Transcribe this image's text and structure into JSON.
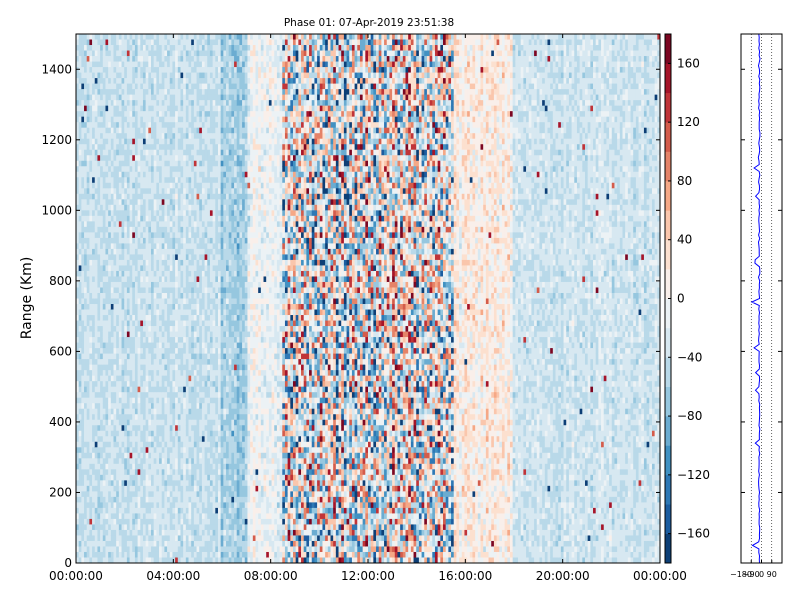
{
  "chart_data": [
    {
      "type": "heatmap",
      "title": "Phase 01: 07-Apr-2019 23:51:38",
      "xlabel": "",
      "ylabel": "Range (Km)",
      "x_ticks": [
        "00:00:00",
        "04:00:00",
        "08:00:00",
        "12:00:00",
        "16:00:00",
        "20:00:00",
        "00:00:00"
      ],
      "x_tick_hours": [
        0,
        4,
        8,
        12,
        16,
        20,
        24
      ],
      "xlim_hours": [
        0,
        24
      ],
      "y_ticks": [
        0,
        200,
        400,
        600,
        800,
        1000,
        1200,
        1400
      ],
      "ylim": [
        0,
        1500
      ],
      "colormap": "RdBu_r",
      "value_range": [
        -180,
        180
      ],
      "colorbar_ticks": [
        160,
        120,
        80,
        40,
        0,
        -40,
        -80,
        -120,
        -160
      ],
      "colorbar_levels": [
        -180,
        -160,
        -140,
        -120,
        -100,
        -80,
        -60,
        -40,
        -20,
        0,
        20,
        40,
        60,
        80,
        100,
        120,
        140,
        160,
        180
      ],
      "grid": false,
      "column_profile": [
        {
          "hour_start": 0,
          "hour_end": 6,
          "mean": -40,
          "spread": 20
        },
        {
          "hour_start": 6,
          "hour_end": 7,
          "mean": -60,
          "spread": 25
        },
        {
          "hour_start": 7,
          "hour_end": 8.5,
          "mean": -10,
          "spread": 30
        },
        {
          "hour_start": 8.5,
          "hour_end": 15.5,
          "mean": 0,
          "spread": 140
        },
        {
          "hour_start": 15.5,
          "hour_end": 18,
          "mean": 15,
          "spread": 35
        },
        {
          "hour_start": 18,
          "hour_end": 24,
          "mean": -35,
          "spread": 20
        }
      ]
    },
    {
      "type": "line",
      "x_ticks": [
        "−180",
        "−90",
        "0",
        "90"
      ],
      "x_tick_values": [
        -180,
        -90,
        0,
        90
      ],
      "xlim": [
        -180,
        180
      ],
      "ylim": [
        0,
        1500
      ],
      "line_color": "#0000ff",
      "grid": true,
      "profile_mean": -20,
      "profile_spread": 6
    }
  ]
}
